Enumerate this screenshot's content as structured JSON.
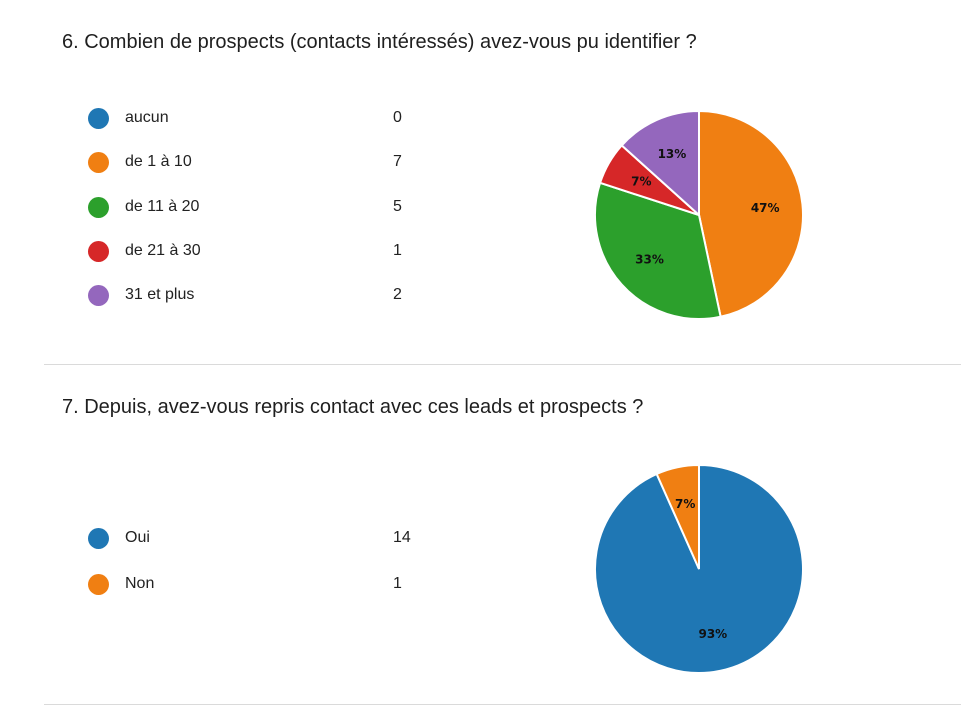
{
  "questions": [
    {
      "title": "6.  Combien de prospects (contacts intéressés) avez-vous pu identifier ?",
      "legend": [
        {
          "label": "aucun",
          "count": "0",
          "color": "#1f77b4"
        },
        {
          "label": "de 1 à 10",
          "count": "7",
          "color": "#f07f12"
        },
        {
          "label": "de 11 à 20",
          "count": "5",
          "color": "#2ca02c"
        },
        {
          "label": "de 21 à 30",
          "count": "1",
          "color": "#d62728"
        },
        {
          "label": "31 et plus",
          "count": "2",
          "color": "#9467bd"
        }
      ]
    },
    {
      "title": "7.  Depuis, avez-vous repris contact avec ces leads et prospects ?",
      "legend": [
        {
          "label": "Oui",
          "count": "14",
          "color": "#1f77b4"
        },
        {
          "label": "Non",
          "count": "1",
          "color": "#f07f12"
        }
      ]
    }
  ],
  "chart_data": [
    {
      "type": "pie",
      "title": "6.  Combien de prospects (contacts intéressés) avez-vous pu identifier ?",
      "categories": [
        "aucun",
        "de 1 à 10",
        "de 11 à 20",
        "de 21 à 30",
        "31 et plus"
      ],
      "values": [
        0,
        7,
        5,
        1,
        2
      ],
      "slice_labels": [
        "",
        "47%",
        "33%",
        "7%",
        "13%"
      ],
      "colors": [
        "#1f77b4",
        "#f07f12",
        "#2ca02c",
        "#d62728",
        "#9467bd"
      ],
      "legend": "left"
    },
    {
      "type": "pie",
      "title": "7.  Depuis, avez-vous repris contact avec ces leads et prospects ?",
      "categories": [
        "Oui",
        "Non"
      ],
      "values": [
        14,
        1
      ],
      "slice_labels": [
        "93%",
        "7%"
      ],
      "colors": [
        "#1f77b4",
        "#f07f12"
      ],
      "legend": "left"
    }
  ]
}
